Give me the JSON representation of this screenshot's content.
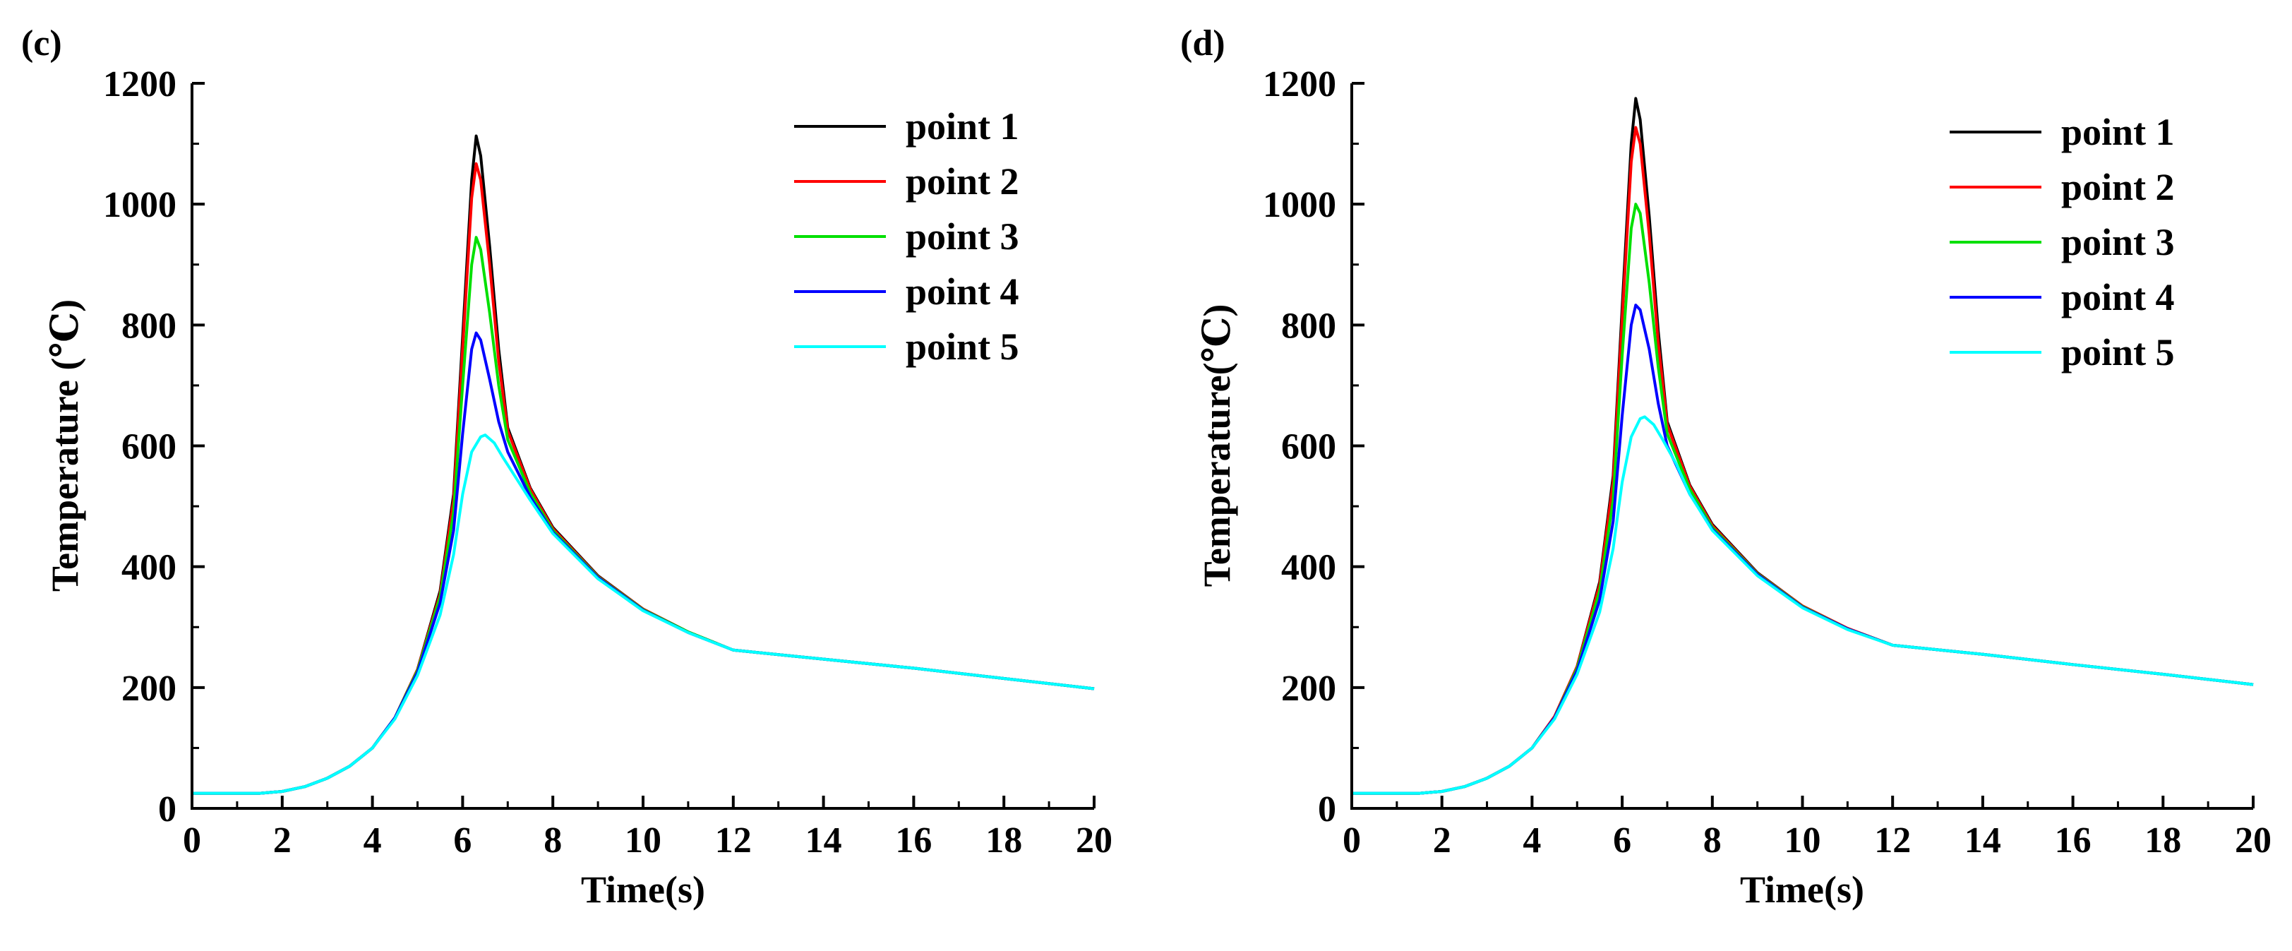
{
  "chart_data": [
    {
      "type": "line",
      "panel_label": "(c)",
      "title": "",
      "xlabel": "Time(s)",
      "ylabel": "Temperature (℃)",
      "xlim": [
        0,
        20
      ],
      "ylim": [
        0,
        1200
      ],
      "x_ticks": [
        "0",
        "2",
        "4",
        "6",
        "8",
        "10",
        "12",
        "14",
        "16",
        "18",
        "20"
      ],
      "y_ticks": [
        "0",
        "200",
        "400",
        "600",
        "800",
        "1000",
        "1200"
      ],
      "legend_position": "top-right",
      "grid": false,
      "series": [
        {
          "name": "point 1",
          "color": "#000000",
          "x": [
            0,
            1.5,
            2,
            2.5,
            3,
            3.5,
            4,
            4.5,
            5,
            5.5,
            5.8,
            6.0,
            6.2,
            6.3,
            6.4,
            6.6,
            6.8,
            7.0,
            7.5,
            8,
            9,
            10,
            11,
            12,
            14,
            16,
            18,
            20
          ],
          "y": [
            25,
            25,
            28,
            36,
            50,
            70,
            100,
            150,
            230,
            360,
            520,
            780,
            1040,
            1113,
            1080,
            930,
            760,
            630,
            530,
            465,
            385,
            330,
            292,
            262,
            247,
            232,
            215,
            198
          ]
        },
        {
          "name": "point 2",
          "color": "#ff0000",
          "x": [
            0,
            1.5,
            2,
            2.5,
            3,
            3.5,
            4,
            4.5,
            5,
            5.5,
            5.8,
            6.0,
            6.2,
            6.3,
            6.4,
            6.6,
            6.8,
            7.0,
            7.5,
            8,
            9,
            10,
            11,
            12,
            14,
            16,
            18,
            20
          ],
          "y": [
            25,
            25,
            28,
            36,
            50,
            70,
            100,
            150,
            230,
            355,
            510,
            760,
            1010,
            1067,
            1040,
            900,
            740,
            625,
            528,
            463,
            384,
            330,
            292,
            262,
            247,
            232,
            215,
            198
          ]
        },
        {
          "name": "point 3",
          "color": "#00e000",
          "x": [
            0,
            1.5,
            2,
            2.5,
            3,
            3.5,
            4,
            4.5,
            5,
            5.5,
            5.8,
            6.0,
            6.2,
            6.3,
            6.4,
            6.6,
            6.8,
            7.0,
            7.5,
            8,
            9,
            10,
            11,
            12,
            14,
            16,
            18,
            20
          ],
          "y": [
            25,
            25,
            28,
            36,
            50,
            70,
            100,
            150,
            228,
            350,
            490,
            700,
            900,
            945,
            925,
            820,
            700,
            610,
            522,
            460,
            383,
            329,
            292,
            262,
            247,
            232,
            215,
            198
          ]
        },
        {
          "name": "point 4",
          "color": "#0000ff",
          "x": [
            0,
            1.5,
            2,
            2.5,
            3,
            3.5,
            4,
            4.5,
            5,
            5.5,
            5.8,
            6.0,
            6.2,
            6.3,
            6.4,
            6.6,
            6.8,
            7.0,
            7.5,
            8,
            9,
            10,
            11,
            12,
            14,
            16,
            18,
            20
          ],
          "y": [
            25,
            25,
            28,
            36,
            50,
            70,
            100,
            150,
            225,
            340,
            460,
            620,
            760,
            787,
            775,
            710,
            640,
            590,
            515,
            457,
            382,
            328,
            291,
            262,
            247,
            232,
            215,
            198
          ]
        },
        {
          "name": "point 5",
          "color": "#00ffff",
          "x": [
            0,
            1.5,
            2,
            2.5,
            3,
            3.5,
            4,
            4.5,
            5,
            5.5,
            5.8,
            6.0,
            6.2,
            6.4,
            6.5,
            6.7,
            6.9,
            7.2,
            7.5,
            8,
            9,
            10,
            11,
            12,
            14,
            16,
            18,
            20
          ],
          "y": [
            25,
            25,
            28,
            36,
            50,
            70,
            100,
            148,
            220,
            320,
            420,
            520,
            590,
            615,
            618,
            605,
            580,
            545,
            510,
            455,
            380,
            327,
            291,
            262,
            247,
            232,
            215,
            198
          ]
        }
      ]
    },
    {
      "type": "line",
      "panel_label": "(d)",
      "title": "",
      "xlabel": "Time(s)",
      "ylabel": "Temperature(℃)",
      "xlim": [
        0,
        20
      ],
      "ylim": [
        0,
        1200
      ],
      "x_ticks": [
        "0",
        "2",
        "4",
        "6",
        "8",
        "10",
        "12",
        "14",
        "16",
        "18",
        "20"
      ],
      "y_ticks": [
        "0",
        "200",
        "400",
        "600",
        "800",
        "1000",
        "1200"
      ],
      "legend_position": "top-right",
      "grid": false,
      "series": [
        {
          "name": "point 1",
          "color": "#000000",
          "x": [
            0,
            1.5,
            2,
            2.5,
            3,
            3.5,
            4,
            4.5,
            5,
            5.5,
            5.8,
            6.0,
            6.2,
            6.3,
            6.4,
            6.6,
            6.8,
            7.0,
            7.5,
            8,
            9,
            10,
            11,
            12,
            14,
            16,
            18,
            20
          ],
          "y": [
            25,
            25,
            28,
            36,
            50,
            70,
            100,
            152,
            235,
            375,
            550,
            830,
            1100,
            1175,
            1140,
            980,
            790,
            640,
            535,
            470,
            390,
            335,
            298,
            270,
            255,
            238,
            222,
            205
          ]
        },
        {
          "name": "point 2",
          "color": "#ff0000",
          "x": [
            0,
            1.5,
            2,
            2.5,
            3,
            3.5,
            4,
            4.5,
            5,
            5.5,
            5.8,
            6.0,
            6.2,
            6.3,
            6.4,
            6.6,
            6.8,
            7.0,
            7.5,
            8,
            9,
            10,
            11,
            12,
            14,
            16,
            18,
            20
          ],
          "y": [
            25,
            25,
            28,
            36,
            50,
            70,
            100,
            152,
            235,
            370,
            540,
            810,
            1070,
            1127,
            1100,
            950,
            770,
            635,
            533,
            468,
            389,
            335,
            298,
            270,
            255,
            238,
            222,
            205
          ]
        },
        {
          "name": "point 3",
          "color": "#00e000",
          "x": [
            0,
            1.5,
            2,
            2.5,
            3,
            3.5,
            4,
            4.5,
            5,
            5.5,
            5.8,
            6.0,
            6.2,
            6.3,
            6.4,
            6.6,
            6.8,
            7.0,
            7.5,
            8,
            9,
            10,
            11,
            12,
            14,
            16,
            18,
            20
          ],
          "y": [
            25,
            25,
            28,
            36,
            50,
            70,
            100,
            150,
            232,
            360,
            510,
            750,
            960,
            1000,
            985,
            870,
            730,
            620,
            528,
            465,
            388,
            334,
            297,
            270,
            255,
            238,
            222,
            205
          ]
        },
        {
          "name": "point 4",
          "color": "#0000ff",
          "x": [
            0,
            1.5,
            2,
            2.5,
            3,
            3.5,
            4,
            4.5,
            5,
            5.5,
            5.8,
            6.0,
            6.2,
            6.3,
            6.4,
            6.6,
            6.8,
            7.0,
            7.5,
            8,
            9,
            10,
            11,
            12,
            14,
            16,
            18,
            20
          ],
          "y": [
            25,
            25,
            28,
            36,
            50,
            70,
            100,
            150,
            228,
            345,
            475,
            650,
            800,
            833,
            825,
            760,
            670,
            600,
            520,
            462,
            387,
            333,
            297,
            270,
            255,
            238,
            222,
            205
          ]
        },
        {
          "name": "point 5",
          "color": "#00ffff",
          "x": [
            0,
            1.5,
            2,
            2.5,
            3,
            3.5,
            4,
            4.5,
            5,
            5.5,
            5.8,
            6.0,
            6.2,
            6.4,
            6.5,
            6.7,
            6.9,
            7.2,
            7.5,
            8,
            9,
            10,
            11,
            12,
            14,
            16,
            18,
            20
          ],
          "y": [
            25,
            25,
            28,
            36,
            50,
            70,
            100,
            148,
            222,
            325,
            430,
            540,
            615,
            645,
            648,
            635,
            610,
            570,
            520,
            460,
            385,
            332,
            296,
            270,
            255,
            238,
            222,
            205
          ]
        }
      ]
    }
  ]
}
